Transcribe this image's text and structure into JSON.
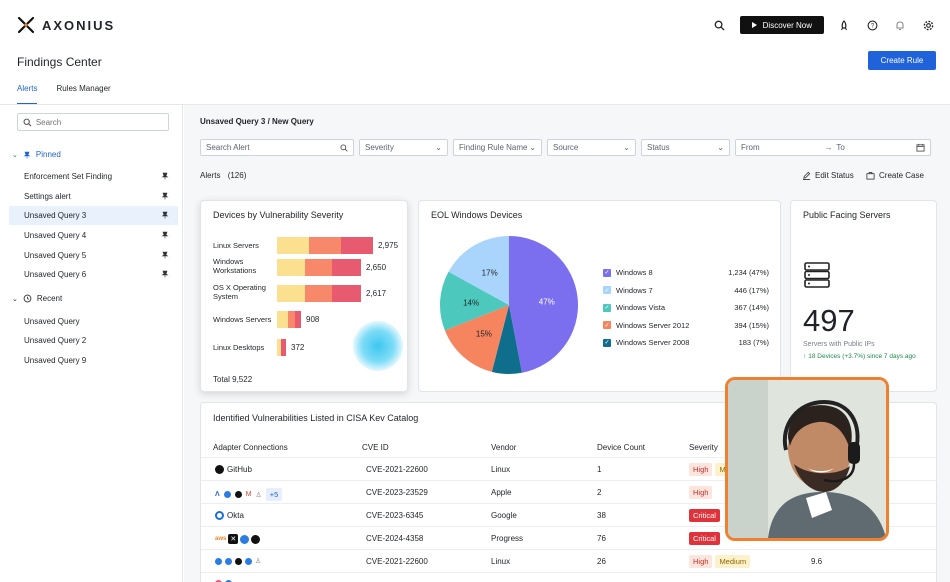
{
  "app": {
    "brand": "AXONIUS",
    "discover_label": "Discover Now"
  },
  "page": {
    "title": "Findings Center",
    "create_rule_label": "Create Rule"
  },
  "tabs": [
    {
      "label": "Alerts",
      "active": true
    },
    {
      "label": "Rules Manager",
      "active": false
    }
  ],
  "sidebar": {
    "search_placeholder": "Search",
    "pinned_label": "Pinned",
    "pinned_items": [
      "Enforcement Set Finding",
      "Settings alert",
      "Unsaved Query 3",
      "Unsaved Query 4",
      "Unsaved Query 5",
      "Unsaved Query 6"
    ],
    "recent_label": "Recent",
    "recent_items": [
      "Unsaved Query",
      "Unsaved Query 2",
      "Unsaved Query 9"
    ]
  },
  "main": {
    "breadcrumb": "Unsaved Query 3 / New Query",
    "filters": {
      "search_alert": "Search Alert",
      "severity": "Severity",
      "finding_rule_name": "Finding Rule Name",
      "source": "Source",
      "status": "Status",
      "from": "From",
      "to": "To"
    },
    "alerts_label": "Alerts",
    "alerts_count": "(126)",
    "edit_status_label": "Edit Status",
    "create_case_label": "Create Case"
  },
  "vuln_card": {
    "title": "Devices by Vulnerability Severity",
    "total": "Total 9,522",
    "rows": [
      {
        "label": "Linux Servers",
        "value": "2,975",
        "segments": [
          32,
          32,
          32
        ]
      },
      {
        "label": "Windows Workstations",
        "value": "2,650",
        "segments": [
          28,
          27,
          29
        ]
      },
      {
        "label": "OS X Operating System",
        "value": "2,617",
        "segments": [
          28,
          27,
          29
        ]
      },
      {
        "label": "Windows Servers",
        "value": "908",
        "segments": [
          11,
          7,
          6
        ]
      },
      {
        "label": "Linux Desktops",
        "value": "372",
        "segments": [
          4,
          0,
          5
        ]
      }
    ],
    "colors": [
      "#fbe08f",
      "#f7896a",
      "#e85a6f"
    ]
  },
  "eol_card": {
    "title": "EOL Windows Devices",
    "slices": [
      {
        "name": "Windows 8",
        "value": "1,234 (47%)",
        "pct": 47,
        "color": "#7b6ff0"
      },
      {
        "name": "Windows 7",
        "value": "446 (17%)",
        "pct": 17,
        "color": "#a9d4fb"
      },
      {
        "name": "Windows Vista",
        "value": "367 (14%)",
        "pct": 14,
        "color": "#4cc8bd"
      },
      {
        "name": "Windows Server 2012",
        "value": "394 (15%)",
        "pct": 15,
        "color": "#f5845f"
      },
      {
        "name": "Windows Server 2008",
        "value": "183 (7%)",
        "pct": 7,
        "color": "#0e6e8c"
      }
    ],
    "pie_labels": {
      "w8": "47%",
      "w7": "17%",
      "vista": "14%",
      "s2012": "15%"
    }
  },
  "public_card": {
    "title": "Public Facing Servers",
    "count": "497",
    "subtitle": "Servers with Public IPs",
    "delta": "18 Devices (+3.7%) since 7 days ago"
  },
  "cisa_table": {
    "title": "Identified Vulnerabilities Listed in CISA Kev Catalog",
    "headers": {
      "adapter": "Adapter Connections",
      "cve": "CVE ID",
      "vendor": "Vendor",
      "count": "Device Count",
      "severity": "Severity"
    },
    "rows": [
      {
        "adapter": "GitHub",
        "cve": "CVE-2021-22600",
        "vendor": "Linux",
        "count": "1",
        "severity": "High",
        "sev2": "Medium",
        "score": ""
      },
      {
        "adapter": "+5",
        "cve": "CVE-2023-23529",
        "vendor": "Apple",
        "count": "2",
        "severity": "High",
        "sev2": "",
        "score": ""
      },
      {
        "adapter": "Okta",
        "cve": "CVE-2023-6345",
        "vendor": "Google",
        "count": "38",
        "severity": "Critical",
        "sev2": "",
        "score": ""
      },
      {
        "adapter": "",
        "cve": "CVE-2024-4358",
        "vendor": "Progress",
        "count": "76",
        "severity": "Critical",
        "sev2": "",
        "score": ""
      },
      {
        "adapter": "",
        "cve": "CVE-2021-22600",
        "vendor": "Linux",
        "count": "26",
        "severity": "High",
        "sev2": "Medium",
        "score": "9.6"
      }
    ]
  }
}
